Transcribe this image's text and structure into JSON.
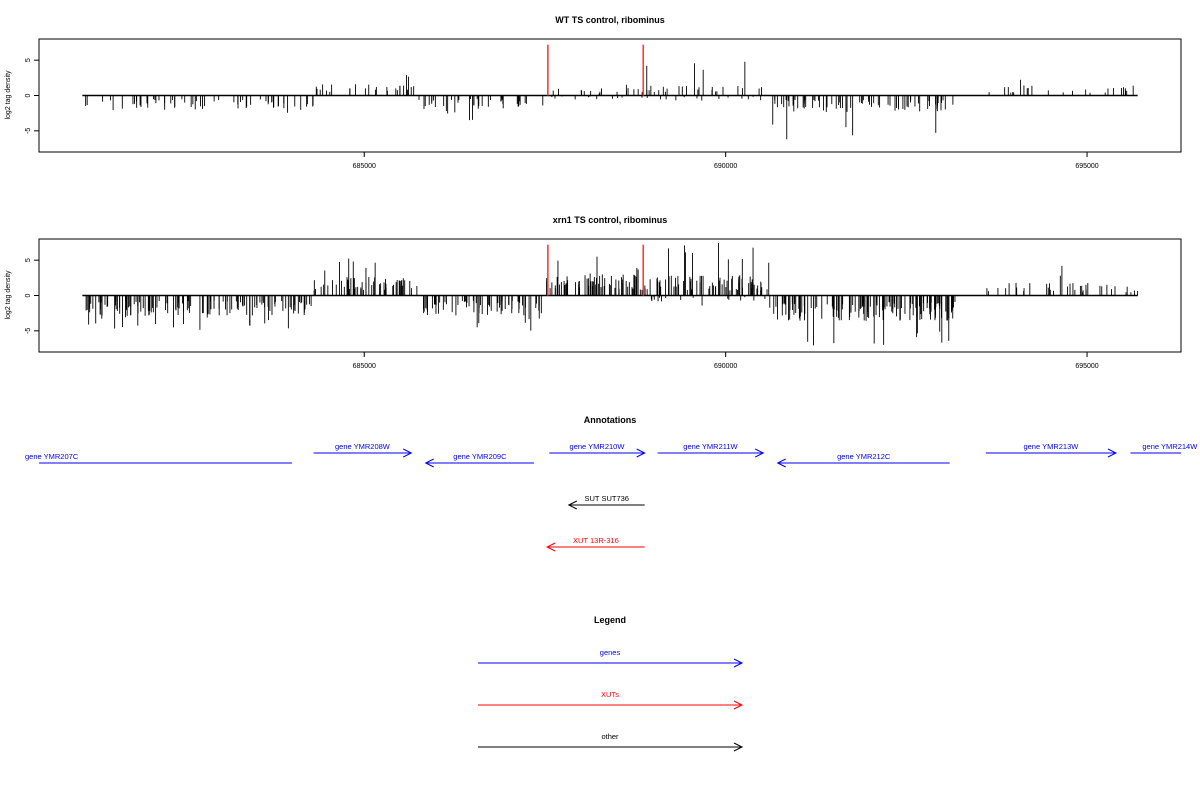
{
  "colors": {
    "genes": "#0000ff",
    "XUTs": "#ff0000",
    "other": "#000000",
    "highlight": "#ff3b3b"
  },
  "chart_data": [
    {
      "type": "bar",
      "title": "WT TS control, ribominus",
      "ylabel": "log2 tag density",
      "xlim": [
        680500,
        696300
      ],
      "ylim": [
        -8,
        8
      ],
      "x_ticks": [
        685000,
        690000,
        695000
      ],
      "x_tick_labels": [
        "685000",
        "690000",
        "695000"
      ],
      "y_ticks": [
        -5,
        0,
        5
      ],
      "y_tick_labels": [
        "-5",
        "0",
        "5"
      ],
      "baseline_range": [
        681100,
        695700
      ],
      "highlight_x": [
        687540,
        688860
      ],
      "highlight_height": 7.2,
      "series_segments": [
        {
          "start": 681100,
          "end": 684300,
          "sign": -1,
          "level": 1.7,
          "spike": 2.9,
          "density": 0.02
        },
        {
          "start": 684300,
          "end": 685750,
          "sign": 1,
          "level": 1.4,
          "spike": 3.8,
          "density": 0.018
        },
        {
          "start": 685750,
          "end": 687500,
          "sign": -1,
          "level": 1.6,
          "spike": 3.6,
          "density": 0.022
        },
        {
          "start": 687500,
          "end": 688900,
          "sign": 1,
          "level": 0.9,
          "spike": 2.2,
          "density": 0.012
        },
        {
          "start": 687500,
          "end": 688900,
          "sign": -1,
          "level": 0.5,
          "spike": 1.0,
          "density": 0.008
        },
        {
          "start": 688900,
          "end": 690500,
          "sign": 1,
          "level": 1.2,
          "spike": 5.0,
          "density": 0.016
        },
        {
          "start": 688900,
          "end": 690500,
          "sign": -1,
          "level": 0.6,
          "spike": 1.6,
          "density": 0.008
        },
        {
          "start": 690650,
          "end": 693200,
          "sign": -1,
          "level": 2.0,
          "spike": 6.5,
          "density": 0.03
        },
        {
          "start": 693600,
          "end": 695700,
          "sign": 1,
          "level": 1.2,
          "spike": 3.6,
          "density": 0.012
        }
      ]
    },
    {
      "type": "bar",
      "title": "xrn1 TS control, ribominus",
      "ylabel": "log2 tag density",
      "xlim": [
        680500,
        696300
      ],
      "ylim": [
        -8,
        8
      ],
      "x_ticks": [
        685000,
        690000,
        695000
      ],
      "x_tick_labels": [
        "685000",
        "690000",
        "695000"
      ],
      "y_ticks": [
        -5,
        0,
        5
      ],
      "y_tick_labels": [
        "-5",
        "0",
        "5"
      ],
      "baseline_range": [
        681100,
        695700
      ],
      "highlight_x": [
        687540,
        688860
      ],
      "highlight_height": 7.2,
      "series_segments": [
        {
          "start": 681100,
          "end": 684300,
          "sign": -1,
          "level": 2.4,
          "spike": 5.0,
          "density": 0.045
        },
        {
          "start": 684300,
          "end": 685800,
          "sign": 1,
          "level": 2.2,
          "spike": 5.4,
          "density": 0.04
        },
        {
          "start": 685800,
          "end": 687500,
          "sign": -1,
          "level": 2.4,
          "spike": 5.0,
          "density": 0.045
        },
        {
          "start": 687500,
          "end": 688900,
          "sign": 1,
          "level": 2.6,
          "spike": 5.8,
          "density": 0.05
        },
        {
          "start": 688900,
          "end": 690600,
          "sign": 1,
          "level": 2.4,
          "spike": 7.5,
          "density": 0.045
        },
        {
          "start": 688900,
          "end": 690600,
          "sign": -1,
          "level": 0.7,
          "spike": 1.8,
          "density": 0.01
        },
        {
          "start": 690600,
          "end": 693200,
          "sign": -1,
          "level": 3.0,
          "spike": 7.4,
          "density": 0.055
        },
        {
          "start": 693600,
          "end": 695700,
          "sign": 1,
          "level": 1.5,
          "spike": 4.6,
          "density": 0.018
        }
      ]
    }
  ],
  "annotations": {
    "title": "Annotations",
    "xlim": [
      680500,
      696300
    ],
    "items": [
      {
        "label": "gene YMR207C",
        "type": "genes",
        "start": 680500,
        "end": 684000,
        "strand": "-",
        "row": 0,
        "arrow": false
      },
      {
        "label": "gene YMR208W",
        "type": "genes",
        "start": 684300,
        "end": 685650,
        "strand": "+",
        "row": 1,
        "arrow": true
      },
      {
        "label": "gene YMR209C",
        "type": "genes",
        "start": 685850,
        "end": 687350,
        "strand": "-",
        "row": 0,
        "arrow": true
      },
      {
        "label": "gene YMR210W",
        "type": "genes",
        "start": 687560,
        "end": 688880,
        "strand": "+",
        "row": 1,
        "arrow": true
      },
      {
        "label": "gene YMR211W",
        "type": "genes",
        "start": 689060,
        "end": 690520,
        "strand": "+",
        "row": 1,
        "arrow": true
      },
      {
        "label": "gene YMR212C",
        "type": "genes",
        "start": 690720,
        "end": 693100,
        "strand": "-",
        "row": 0,
        "arrow": true
      },
      {
        "label": "gene YMR213W",
        "type": "genes",
        "start": 693600,
        "end": 695400,
        "strand": "+",
        "row": 1,
        "arrow": true
      },
      {
        "label": "gene YMR214W",
        "type": "genes",
        "start": 695600,
        "end": 696300,
        "strand": "+",
        "row": 1,
        "arrow": false
      },
      {
        "label": "SUT SUT736",
        "type": "other",
        "start": 687830,
        "end": 688880,
        "strand": "-",
        "row": 2,
        "arrow": true
      },
      {
        "label": "XUT 13R-316",
        "type": "XUTs",
        "start": 687530,
        "end": 688880,
        "strand": "-",
        "row": 3,
        "arrow": true
      }
    ]
  },
  "legend": {
    "title": "Legend",
    "items": [
      {
        "label": "genes",
        "type": "genes"
      },
      {
        "label": "XUTs",
        "type": "XUTs"
      },
      {
        "label": "other",
        "type": "other"
      }
    ]
  }
}
